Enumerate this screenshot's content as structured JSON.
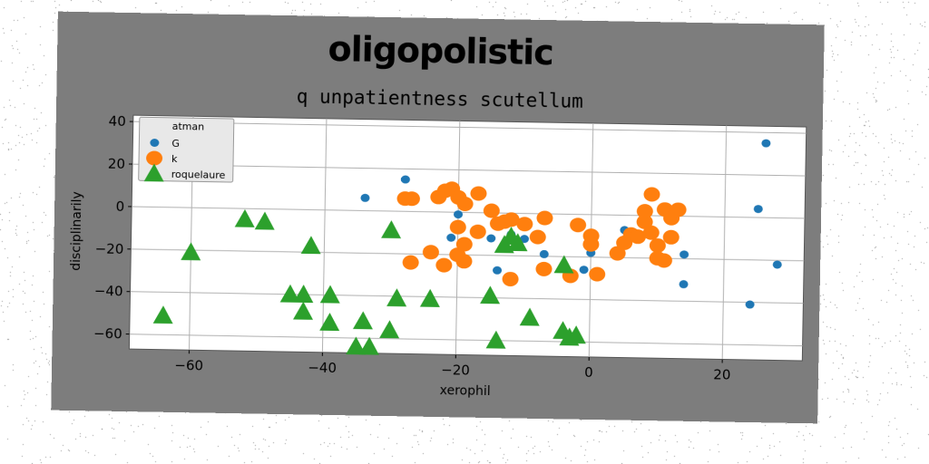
{
  "chart_data": {
    "type": "scatter",
    "title": "oligopolistic",
    "subtitle": "q unpatientness scutellum",
    "xlabel": "xerophil",
    "ylabel": "disciplinarily",
    "xlim": [
      -69,
      32
    ],
    "ylim": [
      -67,
      43
    ],
    "xticks": [
      -60,
      -40,
      -20,
      0,
      20
    ],
    "yticks": [
      40,
      20,
      0,
      -20,
      -40,
      -60
    ],
    "grid": true,
    "legend": {
      "title": "atman",
      "position": "top-left"
    },
    "colors": {
      "G": "#1f77b4",
      "k": "#ff7f0e",
      "roquelaure": "#2ca02c",
      "panel": "#7d7d7d",
      "plot_bg": "#ffffff",
      "grid": "#b0b0b0"
    },
    "series": [
      {
        "name": "G",
        "marker": "circle-small",
        "points": [
          [
            26,
            35
          ],
          [
            25,
            4
          ],
          [
            28,
            -22
          ],
          [
            24,
            -41
          ],
          [
            14,
            -18
          ],
          [
            14,
            -32
          ],
          [
            5,
            -7
          ],
          [
            0,
            -18
          ],
          [
            -1,
            -26
          ],
          [
            -7,
            -19
          ],
          [
            -14,
            -27
          ],
          [
            -15,
            -12
          ],
          [
            -15,
            2
          ],
          [
            -12,
            -10
          ],
          [
            -21,
            -12
          ],
          [
            -28,
            15
          ],
          [
            -34,
            6
          ],
          [
            -20,
            -1
          ],
          [
            -10,
            -12
          ]
        ]
      },
      {
        "name": "k",
        "marker": "circle-large",
        "points": [
          [
            -28,
            6
          ],
          [
            -27,
            6
          ],
          [
            -23,
            7
          ],
          [
            -22,
            10
          ],
          [
            -21,
            11
          ],
          [
            -20,
            7
          ],
          [
            -19,
            4
          ],
          [
            -17,
            9
          ],
          [
            -15,
            1
          ],
          [
            -13,
            -4
          ],
          [
            -12,
            -3
          ],
          [
            -10,
            -5
          ],
          [
            -8,
            -11
          ],
          [
            -7,
            -2
          ],
          [
            -7,
            -26
          ],
          [
            -3,
            -29
          ],
          [
            -2,
            -5
          ],
          [
            0,
            -10
          ],
          [
            0,
            -14
          ],
          [
            1,
            -28
          ],
          [
            4,
            -18
          ],
          [
            5,
            -13
          ],
          [
            6,
            -9
          ],
          [
            7,
            -10
          ],
          [
            8,
            -3
          ],
          [
            8,
            2
          ],
          [
            9,
            10
          ],
          [
            9,
            -8
          ],
          [
            10,
            -14
          ],
          [
            10,
            -20
          ],
          [
            11,
            -21
          ],
          [
            11,
            3
          ],
          [
            12,
            -1
          ],
          [
            12,
            -10
          ],
          [
            13,
            3
          ],
          [
            -19,
            -23
          ],
          [
            -20,
            -7
          ],
          [
            -22,
            -25
          ],
          [
            -24,
            -19
          ],
          [
            -27,
            -24
          ],
          [
            -20,
            -20
          ],
          [
            -17,
            -9
          ],
          [
            -19,
            -15
          ],
          [
            -12,
            -31
          ],
          [
            -14,
            -5
          ]
        ]
      },
      {
        "name": "roquelaure",
        "marker": "triangle",
        "points": [
          [
            -64,
            -51
          ],
          [
            -60,
            -21
          ],
          [
            -52,
            -5
          ],
          [
            -49,
            -6
          ],
          [
            -42,
            -17
          ],
          [
            -45,
            -40
          ],
          [
            -43,
            -40
          ],
          [
            -43,
            -48
          ],
          [
            -39,
            -40
          ],
          [
            -39,
            -53
          ],
          [
            -35,
            -64
          ],
          [
            -34,
            -52
          ],
          [
            -33,
            -64
          ],
          [
            -30,
            -56
          ],
          [
            -30,
            -9
          ],
          [
            -29,
            -41
          ],
          [
            -24,
            -41
          ],
          [
            -15,
            -39
          ],
          [
            -14,
            -60
          ],
          [
            -13,
            -15
          ],
          [
            -12,
            -11
          ],
          [
            -11,
            -14
          ],
          [
            -9,
            -49
          ],
          [
            -4,
            -24
          ],
          [
            -4,
            -55
          ],
          [
            -2,
            -57
          ],
          [
            -3,
            -58
          ]
        ]
      }
    ]
  }
}
